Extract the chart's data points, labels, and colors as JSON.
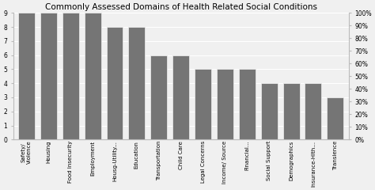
{
  "title": "Commonly Assessed Domains of Health Related Social Conditions",
  "categories": [
    "Safety/\nViolence",
    "Housing",
    "Food Insecurity",
    "Employment",
    "Housg-Utility...",
    "Education",
    "Transportation",
    "Child Care",
    "Legal Concerns",
    "Income/ Source",
    "Financial...",
    "Social Support",
    "Demographics",
    "Insurance-Hlth...",
    "Transience"
  ],
  "values": [
    9,
    9,
    9,
    9,
    8,
    8,
    6,
    6,
    5,
    5,
    5,
    4,
    4,
    4,
    3
  ],
  "bar_color": "#757575",
  "ylim_left": [
    0,
    9
  ],
  "yticks_left": [
    0,
    1,
    2,
    3,
    4,
    5,
    6,
    7,
    8,
    9
  ],
  "yticks_right_labels": [
    "0%",
    "10%",
    "20%",
    "30%",
    "40%",
    "50%",
    "60%",
    "70%",
    "80%",
    "90%",
    "100%"
  ],
  "yticks_right_vals": [
    0,
    1,
    2,
    3,
    4,
    5,
    6,
    7,
    8,
    9,
    10
  ],
  "background_color": "#f0f0f0",
  "title_fontsize": 7.5,
  "tick_fontsize": 5.5,
  "xlabel_fontsize": 5.0
}
